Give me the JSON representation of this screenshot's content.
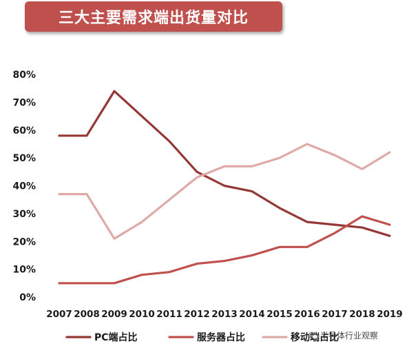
{
  "title": "三大主要需求端出货量对比",
  "watermark": "半导体行业观察",
  "chart_data": {
    "type": "line",
    "title": "三大主要需求端出货量对比",
    "xlabel": "",
    "ylabel": "",
    "categories": [
      "2007",
      "2008",
      "2009",
      "2010",
      "2011",
      "2012",
      "2013",
      "2014",
      "2015",
      "2016",
      "2017",
      "2018",
      "2019"
    ],
    "y_ticks": [
      "0%",
      "10%",
      "20%",
      "30%",
      "40%",
      "50%",
      "60%",
      "70%",
      "80%"
    ],
    "ylim": [
      0,
      80
    ],
    "grid": false,
    "legend_position": "bottom",
    "series": [
      {
        "name": "PC端占比",
        "color": "#953735",
        "values": [
          58,
          58,
          74,
          65,
          56,
          45,
          40,
          38,
          32,
          27,
          26,
          25,
          22
        ]
      },
      {
        "name": "服务器占比",
        "color": "#c0504d",
        "values": [
          5,
          5,
          5,
          8,
          9,
          12,
          13,
          15,
          18,
          18,
          23,
          29,
          26
        ]
      },
      {
        "name": "移动端占比",
        "color": "#dfa9a8",
        "values": [
          37,
          37,
          21,
          27,
          35,
          43,
          47,
          47,
          50,
          55,
          51,
          46,
          52
        ]
      }
    ]
  }
}
